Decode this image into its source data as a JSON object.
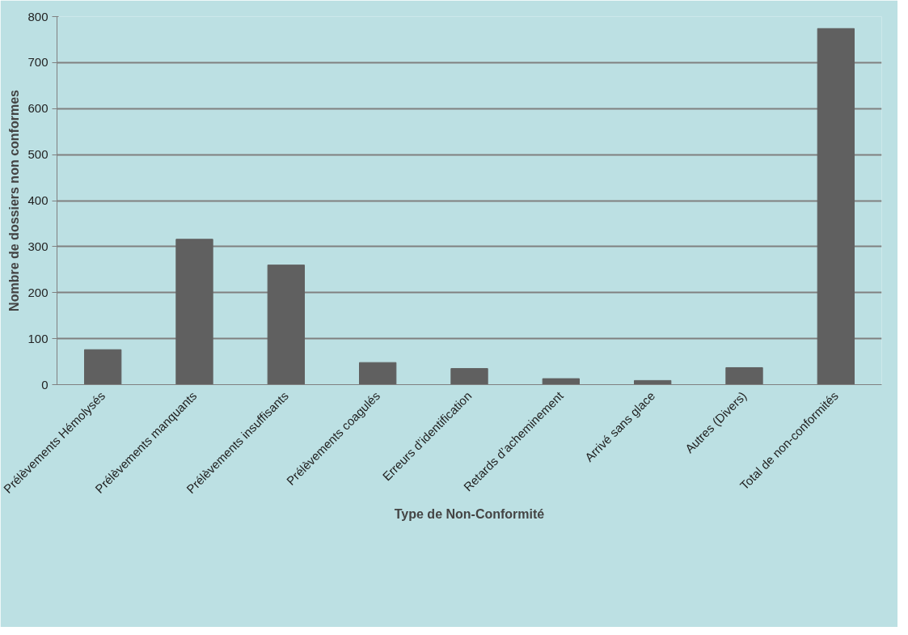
{
  "chart_data": {
    "type": "bar",
    "xlabel": "Type de Non-Conformité",
    "ylabel": "Nombre de dossiers non conformes",
    "categories": [
      "Prélèvements Hémolysés",
      "Prélèvements manquants",
      "Prélèvements insuffisants",
      "Prélèvements coagulés",
      "Erreurs d’identification",
      "Retards d’acheminement",
      "Arrivé sans glace",
      "Autres (Divers)",
      "Total de non-conformités"
    ],
    "values": [
      76,
      316,
      260,
      48,
      35,
      13,
      9,
      37,
      774
    ],
    "color": "#606060",
    "ylim": [
      0,
      800
    ],
    "yticks": [
      0,
      100,
      200,
      300,
      400,
      500,
      600,
      700,
      800
    ],
    "grid": "y"
  }
}
